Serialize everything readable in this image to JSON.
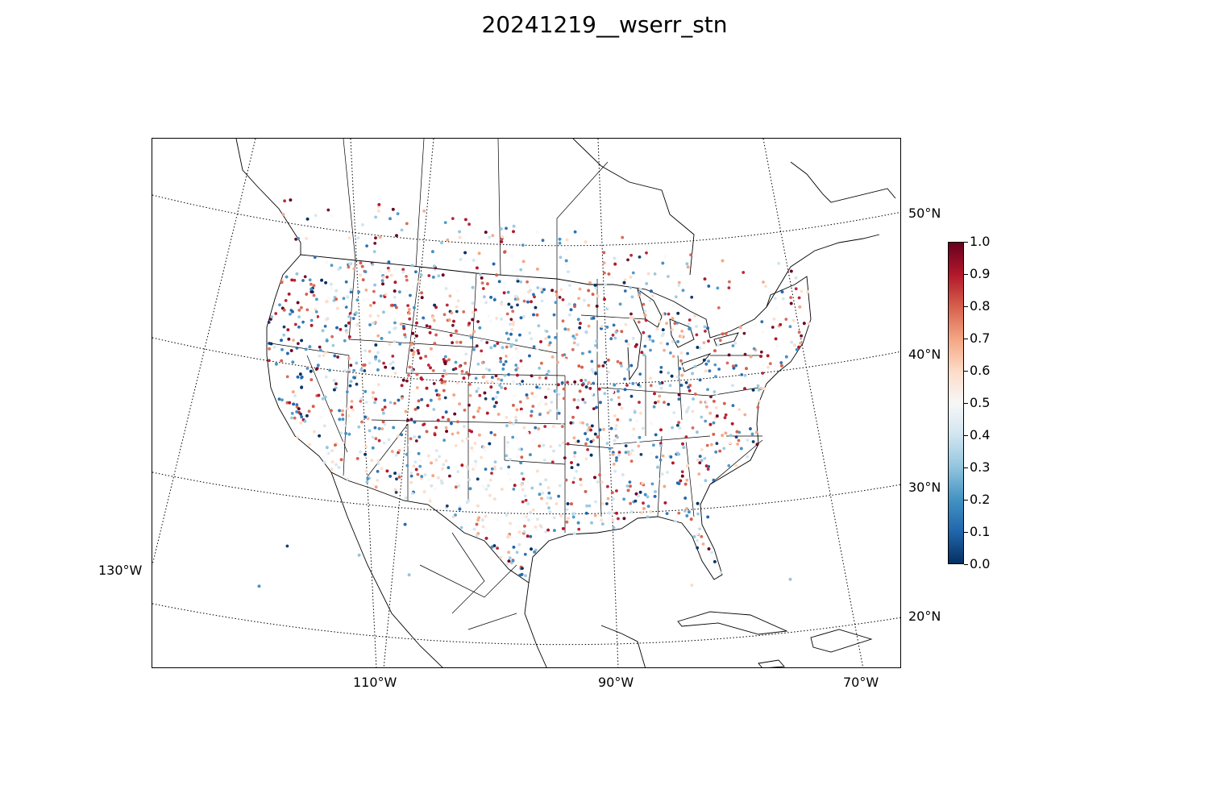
{
  "title": "20241219__wserr_stn",
  "map": {
    "projection": "lambert-conformal",
    "latitude_labels": [
      "50°N",
      "40°N",
      "30°N",
      "20°N"
    ],
    "longitude_labels": [
      "130°W",
      "110°W",
      "90°W",
      "70°W"
    ],
    "gridlines": "dotted",
    "colormap": "RdBu_r",
    "point_count": 2600
  },
  "colorbar": {
    "min": 0.0,
    "max": 1.0,
    "ticks": [
      "0.0",
      "0.1",
      "0.2",
      "0.3",
      "0.4",
      "0.5",
      "0.6",
      "0.7",
      "0.8",
      "0.9",
      "1.0"
    ],
    "colors": [
      "#053061",
      "#2166ac",
      "#4393c3",
      "#92c5de",
      "#d1e5f0",
      "#f7f7f7",
      "#fddbc7",
      "#f4a582",
      "#d6604d",
      "#b2182b",
      "#67001f"
    ]
  }
}
